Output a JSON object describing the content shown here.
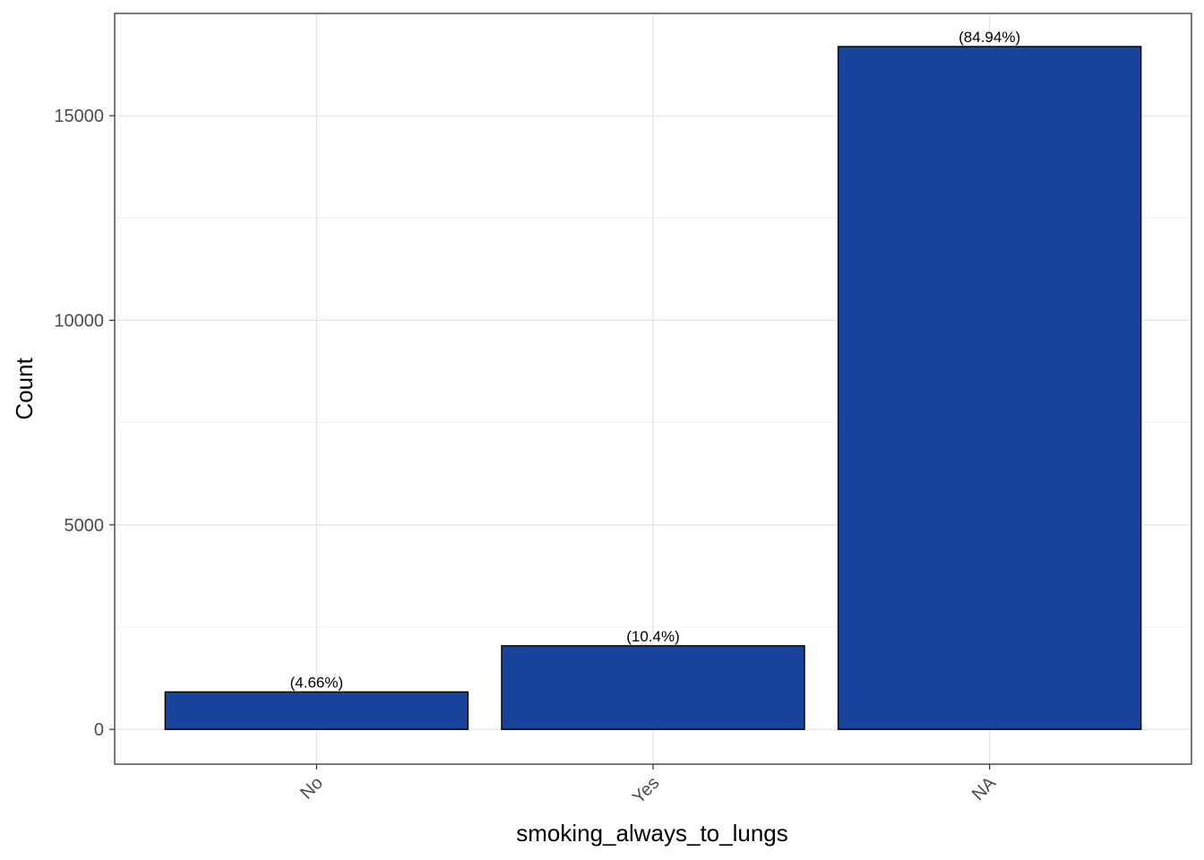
{
  "chart_data": {
    "type": "bar",
    "xlabel": "smoking_always_to_lungs",
    "ylabel": "Count",
    "categories": [
      "No",
      "Yes",
      "NA"
    ],
    "values": [
      915,
      2043,
      16690
    ],
    "bar_labels": [
      "(4.66%)",
      "(10.4%)",
      "(84.94%)"
    ],
    "ylim": [
      -850,
      17500
    ],
    "y_ticks": [
      0,
      5000,
      10000,
      15000
    ],
    "y_minor_ticks": [
      2500,
      7500,
      12500,
      17500
    ],
    "grid": true,
    "legend": "none",
    "bar_color": "#17439A",
    "bar_outline": "#000000",
    "x_tick_rotation_deg": -45
  }
}
